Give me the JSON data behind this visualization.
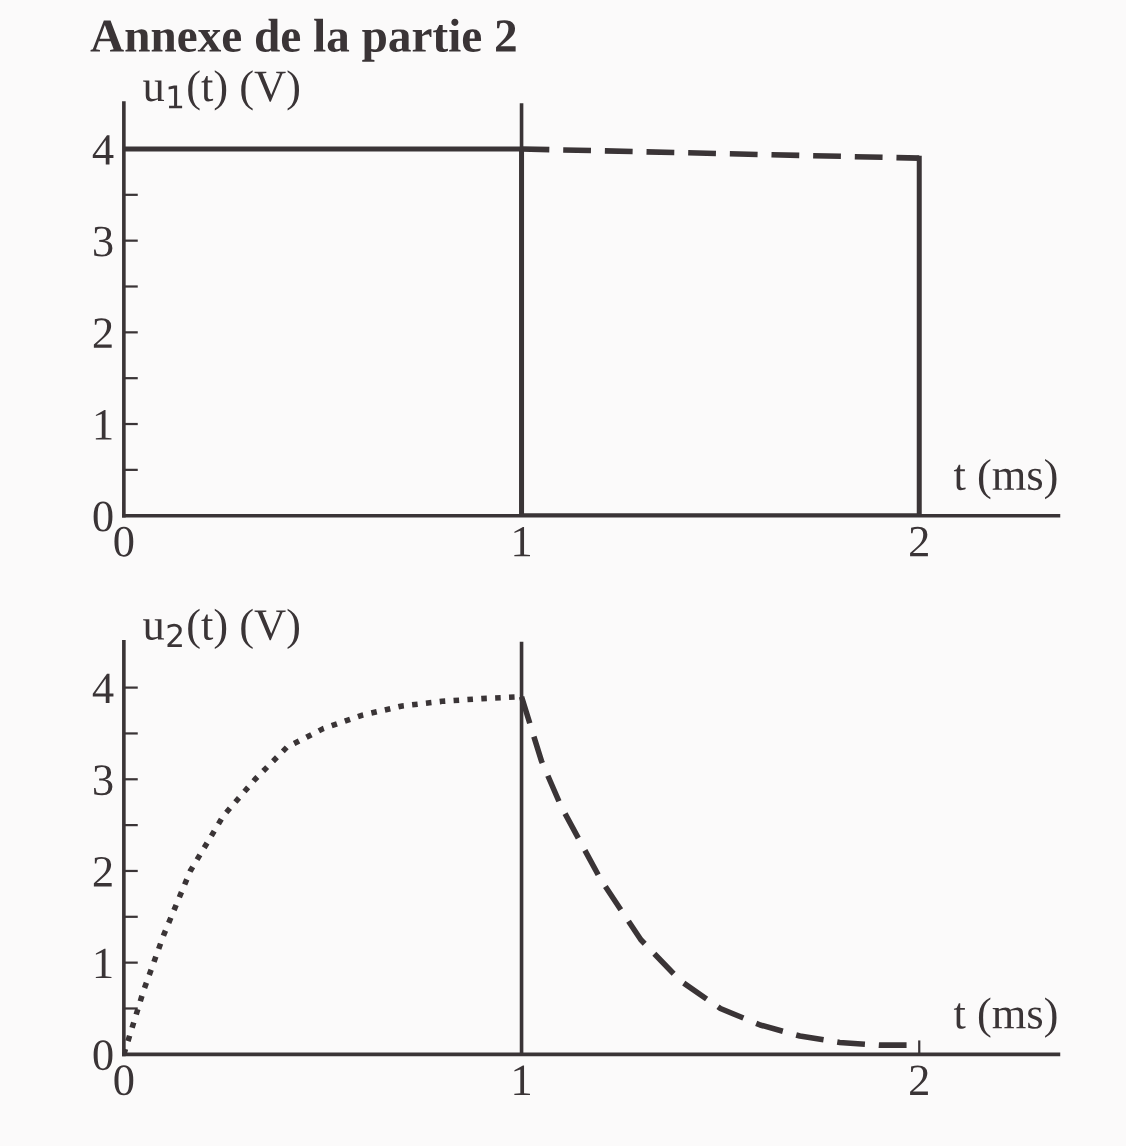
{
  "chart_data": [
    {
      "type": "line",
      "title": "Annexe de la partie 2",
      "xlabel": "t (ms)",
      "ylabel": "u$_{1}$(t) (V)",
      "series": [
        {
          "color": "#3a3436",
          "line_style": "solid",
          "x": [
            0,
            1,
            1,
            2,
            2
          ],
          "values": [
            4,
            4,
            0,
            0,
            3.9
          ]
        },
        {
          "color": "#3a3436",
          "line_style": "dashed",
          "x": [
            1,
            2
          ],
          "values": [
            4,
            3.9
          ]
        }
      ],
      "ref_lines": [
        {
          "axis": "x",
          "value": 1,
          "color": "#3a3436"
        }
      ],
      "xlim": [
        0,
        2.35
      ],
      "ylim": [
        0,
        4.5
      ],
      "xticks": [
        0,
        1,
        2
      ],
      "yticks": [
        0,
        {
          "value": 0.5,
          "label": null
        },
        1,
        {
          "value": 1.5,
          "label": null
        },
        2,
        {
          "value": 2.5,
          "label": null
        },
        3,
        {
          "value": 3.5,
          "label": null
        },
        4
      ],
      "marker": "none",
      "grid": false,
      "legend": false
    },
    {
      "type": "line",
      "xlabel": "t (ms)",
      "ylabel": "u$_{2}$(t) (V)",
      "series": [
        {
          "color": "#3a3436",
          "line_style": "dotted",
          "x": [
            0,
            0.05,
            0.1,
            0.167,
            0.25,
            0.33,
            0.41,
            0.5,
            0.6,
            0.7,
            0.8,
            0.9,
            1.0
          ],
          "values": [
            0,
            0.7,
            1.3,
            2.0,
            2.6,
            3.0,
            3.35,
            3.55,
            3.7,
            3.8,
            3.85,
            3.88,
            3.9
          ]
        },
        {
          "color": "#3a3436",
          "line_style": "dashed",
          "x": [
            1.0,
            1.05,
            1.1,
            1.2,
            1.3,
            1.4,
            1.5,
            1.6,
            1.7,
            1.8,
            1.9,
            2.0
          ],
          "values": [
            3.9,
            3.2,
            2.7,
            1.9,
            1.25,
            0.8,
            0.5,
            0.32,
            0.2,
            0.13,
            0.1,
            0.1
          ]
        }
      ],
      "ref_lines": [
        {
          "axis": "x",
          "value": 1,
          "color": "#3a3436"
        }
      ],
      "xlim": [
        0,
        2.35
      ],
      "ylim": [
        0,
        4.5
      ],
      "xticks": [
        0,
        1,
        2
      ],
      "yticks": [
        0,
        {
          "value": 0.5,
          "label": null
        },
        1,
        {
          "value": 1.5,
          "label": null
        },
        2,
        {
          "value": 2.5,
          "label": null
        },
        3,
        {
          "value": 3.5,
          "label": null
        },
        4
      ],
      "marker": "none",
      "grid": false,
      "legend": false
    }
  ]
}
